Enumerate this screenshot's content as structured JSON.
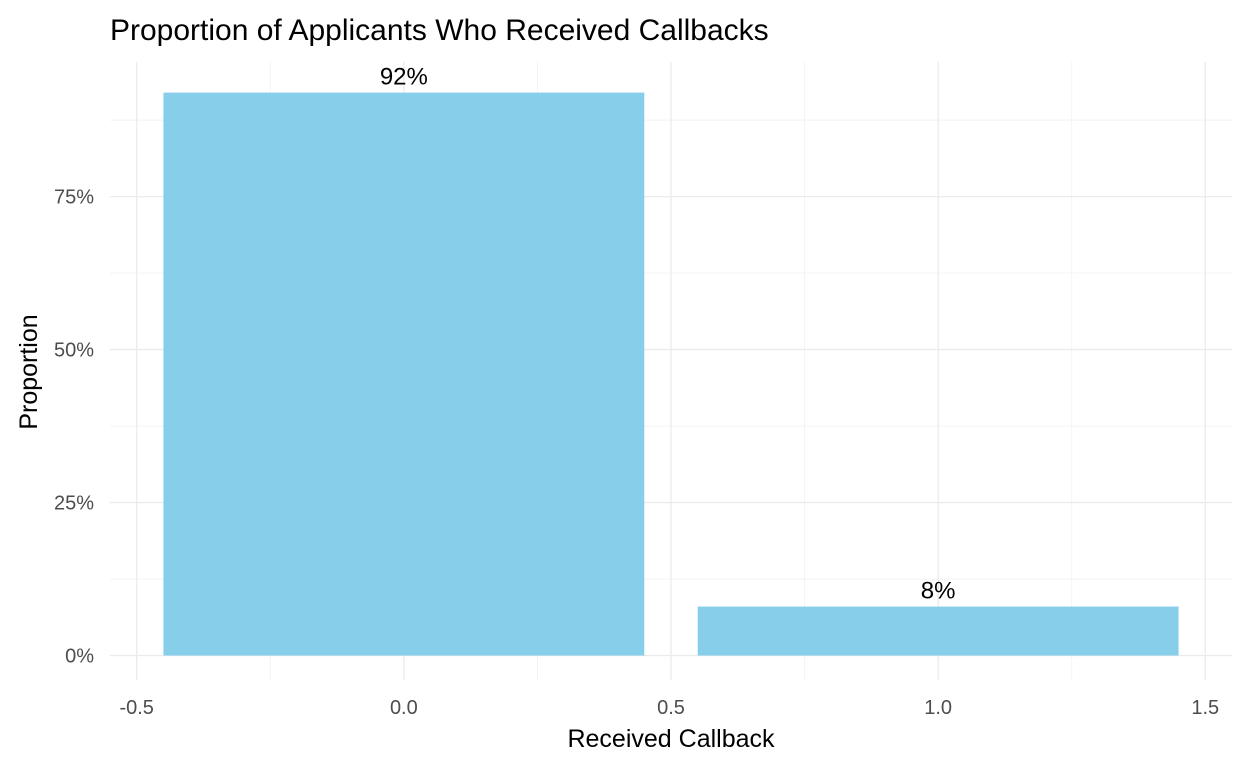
{
  "chart_data": {
    "type": "bar",
    "title": "Proportion of Applicants Who Received Callbacks",
    "xlabel": "Received Callback",
    "ylabel": "Proportion",
    "x": [
      0,
      1
    ],
    "values": [
      0.92,
      0.08
    ],
    "data_labels": [
      "92%",
      "8%"
    ],
    "bar_color": "#87CEEB",
    "xlim": [
      -0.55,
      1.55
    ],
    "ylim": [
      -0.04,
      0.97
    ],
    "x_ticks": [
      -0.5,
      0,
      0.5,
      1,
      1.5
    ],
    "x_tick_labels": [
      "-0.5",
      "0.0",
      "0.5",
      "1.0",
      "1.5"
    ],
    "y_ticks": [
      0,
      0.25,
      0.5,
      0.75
    ],
    "y_tick_labels": [
      "0%",
      "25%",
      "50%",
      "75%"
    ],
    "grid": true,
    "legend": "none"
  }
}
